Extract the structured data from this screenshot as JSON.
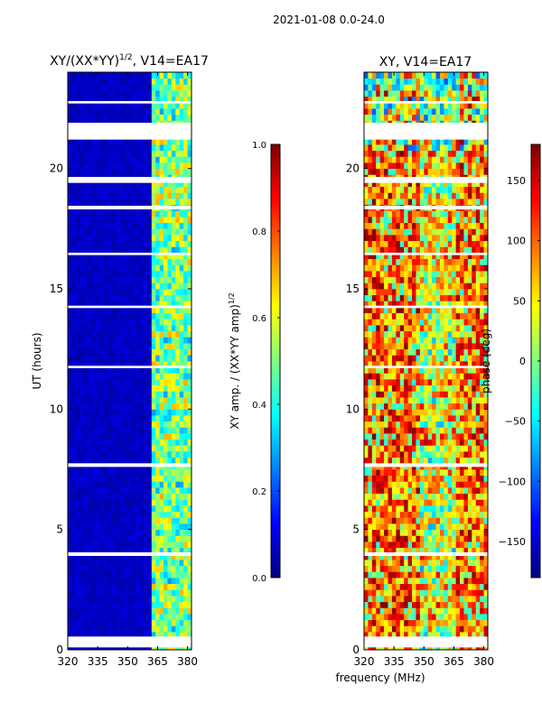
{
  "figure": {
    "suptitle": "2021-01-08 0.0-24.0",
    "xlabel": "frequency (MHz)"
  },
  "colors": {
    "jet_stops": [
      "#00007f",
      "#0000ff",
      "#007fff",
      "#00ffff",
      "#7fff7f",
      "#ffff00",
      "#ff7f00",
      "#ff0000",
      "#7f0000"
    ],
    "gap": "#ffffff",
    "frame": "#000000"
  },
  "chart_data": [
    {
      "type": "heatmap",
      "title_main": "XY/(XX*YY)",
      "title_sup": "1/2",
      "title_tail": ", V14=EA17",
      "xlabel": "",
      "ylabel": "UT (hours)",
      "xlim": [
        320,
        382
      ],
      "ylim": [
        0,
        24
      ],
      "xticks": [
        320,
        335,
        350,
        365,
        380
      ],
      "yticks": [
        0,
        5,
        10,
        15,
        20
      ],
      "colorbar": {
        "label": "XY amp. / (XX*YY amp)",
        "label_sup": "1/2",
        "range": [
          0.0,
          1.0
        ],
        "ticks": [
          "0.0",
          "0.2",
          "0.4",
          "0.6",
          "0.8",
          "1.0"
        ]
      },
      "gaps_hours": [
        [
          0.1,
          0.55
        ],
        [
          19.4,
          19.65
        ],
        [
          21.2,
          21.9
        ],
        [
          3.9,
          4.05
        ],
        [
          7.6,
          7.75
        ],
        [
          11.7,
          11.8
        ],
        [
          14.2,
          14.3
        ],
        [
          16.4,
          16.5
        ],
        [
          18.3,
          18.45
        ],
        [
          22.7,
          22.8
        ]
      ],
      "description": "Amplitude ratio is low (~0.05) below ~362 MHz and rises to ~0.4-0.7 between 362 and 382 MHz"
    },
    {
      "type": "heatmap",
      "title": "XY, V14=EA17",
      "xlabel": "",
      "ylabel": "",
      "xlim": [
        320,
        382
      ],
      "ylim": [
        0,
        24
      ],
      "xticks": [
        320,
        335,
        350,
        365,
        380
      ],
      "yticks": [
        0,
        5,
        10,
        15,
        20
      ],
      "colorbar": {
        "label": "phase (deg)",
        "range": [
          -180,
          180
        ],
        "ticks": [
          "−150",
          "−100",
          "−50",
          "0",
          "50",
          "100",
          "150"
        ]
      },
      "gaps_hours": [
        [
          0.1,
          0.55
        ],
        [
          19.4,
          19.65
        ],
        [
          21.2,
          21.9
        ],
        [
          3.9,
          4.05
        ],
        [
          7.6,
          7.75
        ],
        [
          11.7,
          11.8
        ],
        [
          14.2,
          14.3
        ],
        [
          16.4,
          16.5
        ],
        [
          18.3,
          18.45
        ],
        [
          22.7,
          22.8
        ]
      ],
      "description": "Phase is noisy, mostly positive (50-180 deg) with a band near 0-50 deg around 350-365 MHz"
    }
  ]
}
